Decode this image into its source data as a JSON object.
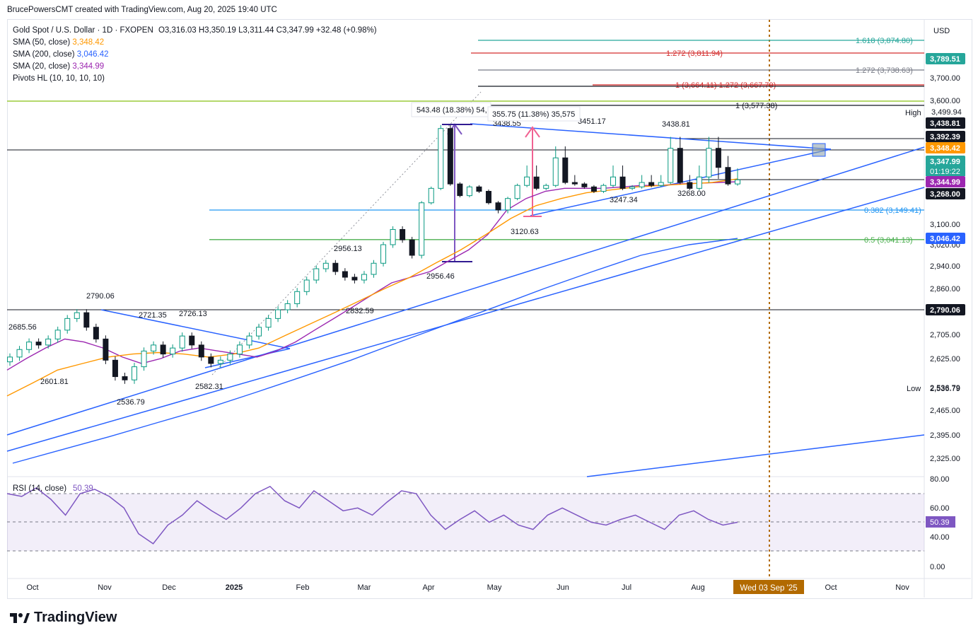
{
  "header": {
    "credit": "BrucePowersCMT created with TradingView.com, Aug 20, 2025 19:40 UTC"
  },
  "legend": {
    "symbol": "Gold Spot / U.S. Dollar · 1D · FXOPEN",
    "ohlc": "O3,316.03  H3,350.19  L3,311.44  C3,347.99  +32.48 (+0.98%)",
    "sma50_label": "SMA (50, close)",
    "sma50_value": "3,348.42",
    "sma200_label": "SMA (200, close)",
    "sma200_value": "3,046.42",
    "sma20_label": "SMA (20, close)",
    "sma20_value": "3,344.99",
    "pivots": "Pivots HL (10, 10, 10, 10)"
  },
  "currency": "USD",
  "logo_text": "TradingView",
  "chart_data": {
    "type": "candlestick",
    "title": "Gold Spot / U.S. Dollar · 1D · FXOPEN",
    "x_axis_labels": [
      "Oct",
      "Nov",
      "Dec",
      "2025",
      "Feb",
      "Mar",
      "Apr",
      "May",
      "Jun",
      "Jul",
      "Aug",
      "Wed 03 Sep '25",
      "Oct",
      "Nov"
    ],
    "y_axis_ticks": [
      "3,700.00",
      "3,600.00",
      "3,100.00",
      "3,020.00",
      "2,940.00",
      "2,860.00",
      "2,705.00",
      "2,625.00",
      "2,536.79",
      "2,465.00",
      "2,395.00",
      "2,325.00"
    ],
    "ylim": [
      2290,
      3900
    ],
    "price_tags": [
      {
        "value": 3789.51,
        "text": "3,789.51",
        "color": "#26a69a"
      },
      {
        "value": 3438.81,
        "text": "3,438.81",
        "color": "#131722"
      },
      {
        "value": 3392.39,
        "text": "3,392.39",
        "color": "#131722"
      },
      {
        "value": 3348.42,
        "text": "3,348.42",
        "color": "#ff9800"
      },
      {
        "value": 3347.99,
        "text": "3,347.99",
        "color": "#26a69a"
      },
      {
        "value": 3344.99,
        "text": "3,344.99",
        "color": "#9c27b0"
      },
      {
        "value": 3268.0,
        "text": "3,268.00",
        "color": "#131722"
      },
      {
        "value": 3046.42,
        "text": "3,046.42",
        "color": "#2962ff"
      },
      {
        "value": 2790.06,
        "text": "2,790.06",
        "color": "#131722"
      }
    ],
    "countdown": "01:19:22",
    "high_label": "High",
    "high_value": "3,499.94",
    "low_label": "Low",
    "low_value": "2,536.79",
    "fib_levels": [
      {
        "text": "1.618 (3,874.80)",
        "value": 3874.8,
        "color": "#26a69a"
      },
      {
        "text": "1.272 (3,811.94)",
        "value": 3811.94,
        "color": "#d32f2f"
      },
      {
        "text": "1.272 (3,738.63)",
        "value": 3738.63,
        "color": "#787b86"
      },
      {
        "text": "1 (3,664.11)  1.272 (3,667.79)",
        "value": 3667.0,
        "color": "#d32f2f"
      },
      {
        "text": "1 (3,577.38)",
        "value": 3577.38,
        "color": "#131722"
      },
      {
        "text": "0.382 (3,149.41)",
        "value": 3149.41,
        "color": "#2196f3"
      },
      {
        "text": "0.5 (3,041.13)",
        "value": 3041.13,
        "color": "#4caf50"
      }
    ],
    "pivot_labels": [
      "2685.56",
      "2601.81",
      "2790.06",
      "2536.79",
      "2721.35",
      "2726.13",
      "2582.31",
      "2956.13",
      "2832.59",
      "2956.46",
      "3438.55",
      "3120.63",
      "3451.17",
      "3247.34",
      "3438.81",
      "3268.00"
    ],
    "measure_labels": [
      "543.48 (18.38%) 54,",
      "355.75 (11.38%) 35,575"
    ],
    "series": [
      {
        "name": "Gold close",
        "values": [
          2630,
          2655,
          2680,
          2670,
          2690,
          2720,
          2760,
          2780,
          2730,
          2690,
          2620,
          2570,
          2560,
          2600,
          2650,
          2670,
          2640,
          2660,
          2700,
          2670,
          2630,
          2610,
          2620,
          2640,
          2670,
          2700,
          2730,
          2760,
          2790,
          2810,
          2850,
          2890,
          2930,
          2950,
          2920,
          2900,
          2890,
          2910,
          2950,
          3020,
          3080,
          3040,
          2980,
          3200,
          3300,
          3420,
          3330,
          3250,
          3310,
          3280,
          3200,
          3150,
          3230,
          3320,
          3350,
          3300,
          3320,
          3370,
          3340,
          3330,
          3310,
          3280,
          3320,
          3350,
          3300,
          3310,
          3340,
          3320,
          3340,
          3380,
          3340,
          3300,
          3350,
          3380,
          3360,
          3330,
          3347
        ]
      },
      {
        "name": "SMA (20, close)",
        "values": [
          2590,
          2625,
          2660,
          2690,
          2680,
          2660,
          2630,
          2610,
          2625,
          2650,
          2660,
          2650,
          2640,
          2630,
          2650,
          2680,
          2720,
          2760,
          2800,
          2840,
          2880,
          2900,
          2920,
          2960,
          3000,
          3060,
          3150,
          3230,
          3280,
          3300,
          3300,
          3300,
          3310,
          3320,
          3320,
          3330,
          3335,
          3340,
          3345
        ]
      },
      {
        "name": "SMA (50, close)",
        "values": [
          2510,
          2550,
          2590,
          2610,
          2630,
          2640,
          2645,
          2640,
          2630,
          2640,
          2660,
          2700,
          2740,
          2780,
          2820,
          2860,
          2900,
          2950,
          3000,
          3060,
          3120,
          3180,
          3230,
          3270,
          3290,
          3310,
          3320,
          3330,
          3340,
          3348
        ]
      },
      {
        "name": "SMA (200, close)",
        "values": [
          2310,
          2350,
          2390,
          2430,
          2470,
          2520,
          2570,
          2620,
          2680,
          2740,
          2800,
          2860,
          2920,
          2980,
          3020,
          3046
        ]
      },
      {
        "name": "RSI (14, close)",
        "values": [
          70,
          68,
          74,
          66,
          55,
          70,
          73,
          68,
          60,
          42,
          35,
          48,
          55,
          65,
          58,
          52,
          60,
          70,
          75,
          65,
          60,
          72,
          65,
          58,
          60,
          55,
          64,
          72,
          70,
          55,
          45,
          52,
          58,
          50,
          55,
          48,
          45,
          55,
          60,
          55,
          50,
          48,
          52,
          55,
          50,
          45,
          55,
          58,
          52,
          48,
          50
        ]
      }
    ],
    "rsi": {
      "label": "RSI (14, close)",
      "value": "50.39",
      "levels": [
        "80.00",
        "60.00",
        "40.00",
        "0.00"
      ],
      "upper": 70,
      "middle": 50,
      "lower": 30
    }
  }
}
